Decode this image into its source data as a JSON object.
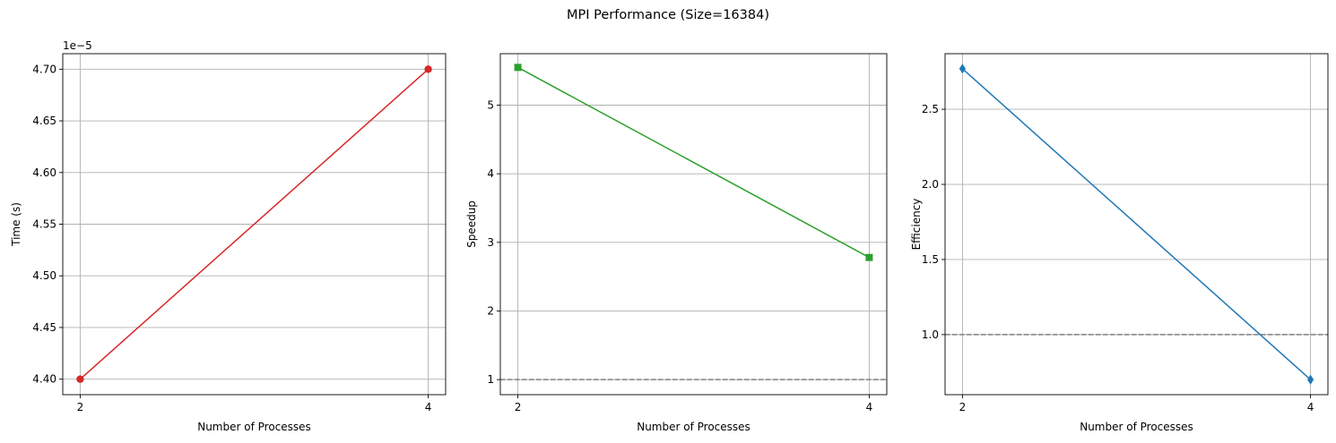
{
  "figure": {
    "suptitle": "MPI Performance (Size=16384)"
  },
  "chart_data": [
    {
      "type": "line",
      "xlabel": "Number of Processes",
      "ylabel": "Time (s)",
      "offset_text": "1e−5",
      "x": [
        2,
        4
      ],
      "xticks": [
        2,
        4
      ],
      "xtick_labels": [
        "2",
        "4"
      ],
      "ylim": [
        4.385,
        4.715
      ],
      "yticks": [
        4.4,
        4.45,
        4.5,
        4.55,
        4.6,
        4.65,
        4.7
      ],
      "ytick_labels": [
        "4.40",
        "4.45",
        "4.50",
        "4.55",
        "4.60",
        "4.65",
        "4.70"
      ],
      "series": [
        {
          "values": [
            4.4,
            4.7
          ],
          "color": "#d62728",
          "marker": "circle"
        }
      ],
      "reference_line": null,
      "grid": true
    },
    {
      "type": "line",
      "xlabel": "Number of Processes",
      "ylabel": "Speedup",
      "offset_text": "",
      "x": [
        2,
        4
      ],
      "xticks": [
        2,
        4
      ],
      "xtick_labels": [
        "2",
        "4"
      ],
      "ylim": [
        0.78,
        5.75
      ],
      "yticks": [
        1,
        2,
        3,
        4,
        5
      ],
      "ytick_labels": [
        "1",
        "2",
        "3",
        "4",
        "5"
      ],
      "series": [
        {
          "values": [
            5.55,
            2.78
          ],
          "color": "#2ca02c",
          "marker": "square"
        }
      ],
      "reference_line": {
        "y": 1,
        "color": "#808080",
        "style": "dashed"
      },
      "grid": true
    },
    {
      "type": "line",
      "xlabel": "Number of Processes",
      "ylabel": "Efficiency",
      "offset_text": "",
      "x": [
        2,
        4
      ],
      "xticks": [
        2,
        4
      ],
      "xtick_labels": [
        "2",
        "4"
      ],
      "ylim": [
        0.6,
        2.87
      ],
      "yticks": [
        1.0,
        1.5,
        2.0,
        2.5
      ],
      "ytick_labels": [
        "1.0",
        "1.5",
        "2.0",
        "2.5"
      ],
      "series": [
        {
          "values": [
            2.77,
            0.7
          ],
          "color": "#1f77b4",
          "marker": "diamond"
        }
      ],
      "reference_line": {
        "y": 1.0,
        "color": "#808080",
        "style": "dashed"
      },
      "grid": true
    }
  ]
}
